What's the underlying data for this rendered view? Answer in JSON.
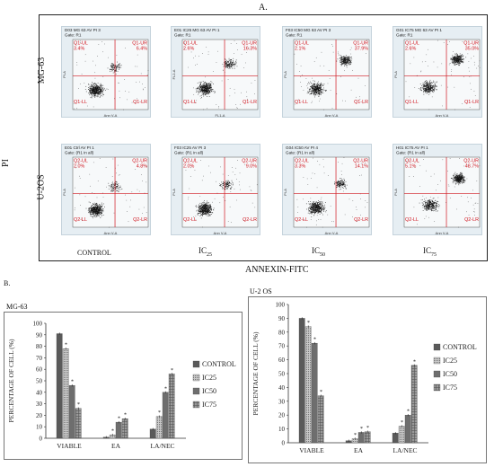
{
  "panel_a": {
    "label": "A.",
    "y_axis_label": "PI",
    "x_axis_label": "ANNEXIN-FITC",
    "row_labels": [
      "MG-63",
      "U-2OS"
    ],
    "column_labels": [
      "CONTROL",
      "IC25",
      "IC50",
      "IC75"
    ],
    "plots": [
      {
        "header": "D03 MG 63 AV PI 3",
        "gate": "Gate: R1",
        "quadrant_prefix": "Q1",
        "ul": "3.4%",
        "ur": "6.4%",
        "ll": "",
        "lr": "",
        "xlabel": "Ann V-A",
        "ylabel": "PI-A",
        "seed": 1,
        "main": [
          0.3,
          0.72
        ],
        "up": [
          0.55,
          0.4
        ],
        "ur_density": 0.08
      },
      {
        "header": "E01 IC25 MG 63 AV PI 1",
        "gate": "Gate: R1",
        "quadrant_prefix": "Q1",
        "ul": "2.6%",
        "ur": "16.3%",
        "ll": "",
        "lr": "",
        "xlabel": "FL1-A",
        "ylabel": "FL2-A",
        "seed": 2,
        "main": [
          0.3,
          0.7
        ],
        "up": [
          0.62,
          0.35
        ],
        "ur_density": 0.18
      },
      {
        "header": "F03 IC50 MG 63 AV PI 3",
        "gate": "Gate: R1",
        "quadrant_prefix": "Q1",
        "ul": "2.1%",
        "ur": "37.9%",
        "ll": "",
        "lr": "",
        "xlabel": "Ann V-A",
        "ylabel": "PI-A",
        "seed": 3,
        "main": [
          0.3,
          0.7
        ],
        "up": [
          0.68,
          0.3
        ],
        "ur_density": 0.4
      },
      {
        "header": "G01 IC75 MG 63 AV PI 1",
        "gate": "Gate: R1",
        "quadrant_prefix": "Q1",
        "ul": "2.6%",
        "ur": "35.0%",
        "ll": "",
        "lr": "",
        "xlabel": "Ann V-A",
        "ylabel": "PI-A",
        "seed": 4,
        "main": [
          0.32,
          0.68
        ],
        "up": [
          0.7,
          0.28
        ],
        "ur_density": 0.55
      },
      {
        "header": "E01 Ctrl AV PI 1",
        "gate": "Gate: (R1 in all)",
        "quadrant_prefix": "Q2",
        "ul": "2.0%",
        "ur": "4.8%",
        "ll": "",
        "lr": "",
        "xlabel": "Ann V-A",
        "ylabel": "PI-A",
        "seed": 5,
        "main": [
          0.3,
          0.75
        ],
        "up": [
          0.55,
          0.42
        ],
        "ur_density": 0.07
      },
      {
        "header": "F03 IC25 AV PI 3",
        "gate": "Gate: (R1 in all)",
        "quadrant_prefix": "Q2",
        "ul": "2.0%",
        "ur": "9.0%",
        "ll": "",
        "lr": "",
        "xlabel": "Ann V-A",
        "ylabel": "PI-A",
        "seed": 6,
        "main": [
          0.3,
          0.74
        ],
        "up": [
          0.58,
          0.4
        ],
        "ur_density": 0.1
      },
      {
        "header": "G04 IC50 AV PI 4",
        "gate": "Gate: (R1 in all)",
        "quadrant_prefix": "Q2",
        "ul": "3.3%",
        "ur": "14.1%",
        "ll": "",
        "lr": "",
        "xlabel": "Ann V-A",
        "ylabel": "PI-A",
        "seed": 7,
        "main": [
          0.3,
          0.72
        ],
        "up": [
          0.62,
          0.38
        ],
        "ur_density": 0.16
      },
      {
        "header": "H01 IC75 AV PI 1",
        "gate": "Gate: (R1 in all)",
        "quadrant_prefix": "Q2",
        "ul": "5.1%",
        "ur": "48.7%",
        "ll": "",
        "lr": "",
        "xlabel": "Ann V-A",
        "ylabel": "PI-A",
        "seed": 8,
        "main": [
          0.34,
          0.68
        ],
        "up": [
          0.72,
          0.3
        ],
        "ur_density": 0.6
      }
    ]
  },
  "panel_b_label": "B.",
  "chart_data": [
    {
      "type": "bar",
      "title": "MG-63",
      "ylabel": "PERCENTAGE OF CELL (%)",
      "ylim": [
        0,
        100
      ],
      "yticks": [
        0,
        10,
        20,
        30,
        40,
        50,
        60,
        70,
        80,
        90,
        100
      ],
      "categories": [
        "VIABLE",
        "EA",
        "LA/NEC"
      ],
      "series": [
        {
          "name": "CONTROL",
          "values": [
            91,
            1,
            8
          ]
        },
        {
          "name": "IC25",
          "values": [
            78,
            3,
            19
          ]
        },
        {
          "name": "IC50",
          "values": [
            46,
            14,
            40
          ]
        },
        {
          "name": "IC75",
          "values": [
            26,
            17,
            56
          ]
        }
      ],
      "annotations": [
        "*"
      ],
      "legend": "right",
      "series_colors": [
        "#5a5a5a",
        "#a8a8a8",
        "#6e6e6e",
        "#8a8a8a"
      ]
    },
    {
      "type": "bar",
      "title": "U-2 OS",
      "ylabel": "PERCENTAGE OF CELL (%)",
      "ylim": [
        0,
        100
      ],
      "yticks": [
        0,
        10,
        20,
        30,
        40,
        50,
        60,
        70,
        80,
        90,
        100
      ],
      "categories": [
        "VIABLE",
        "EA",
        "LA/NEC"
      ],
      "series": [
        {
          "name": "CONTROL",
          "values": [
            90,
            1.5,
            7
          ]
        },
        {
          "name": "IC25",
          "values": [
            84,
            3,
            12
          ]
        },
        {
          "name": "IC50",
          "values": [
            72,
            7.5,
            20
          ]
        },
        {
          "name": "IC75",
          "values": [
            34,
            8,
            56
          ]
        }
      ],
      "annotations": [
        "*"
      ],
      "legend": "right",
      "series_colors": [
        "#5a5a5a",
        "#a8a8a8",
        "#6e6e6e",
        "#8a8a8a"
      ]
    }
  ]
}
